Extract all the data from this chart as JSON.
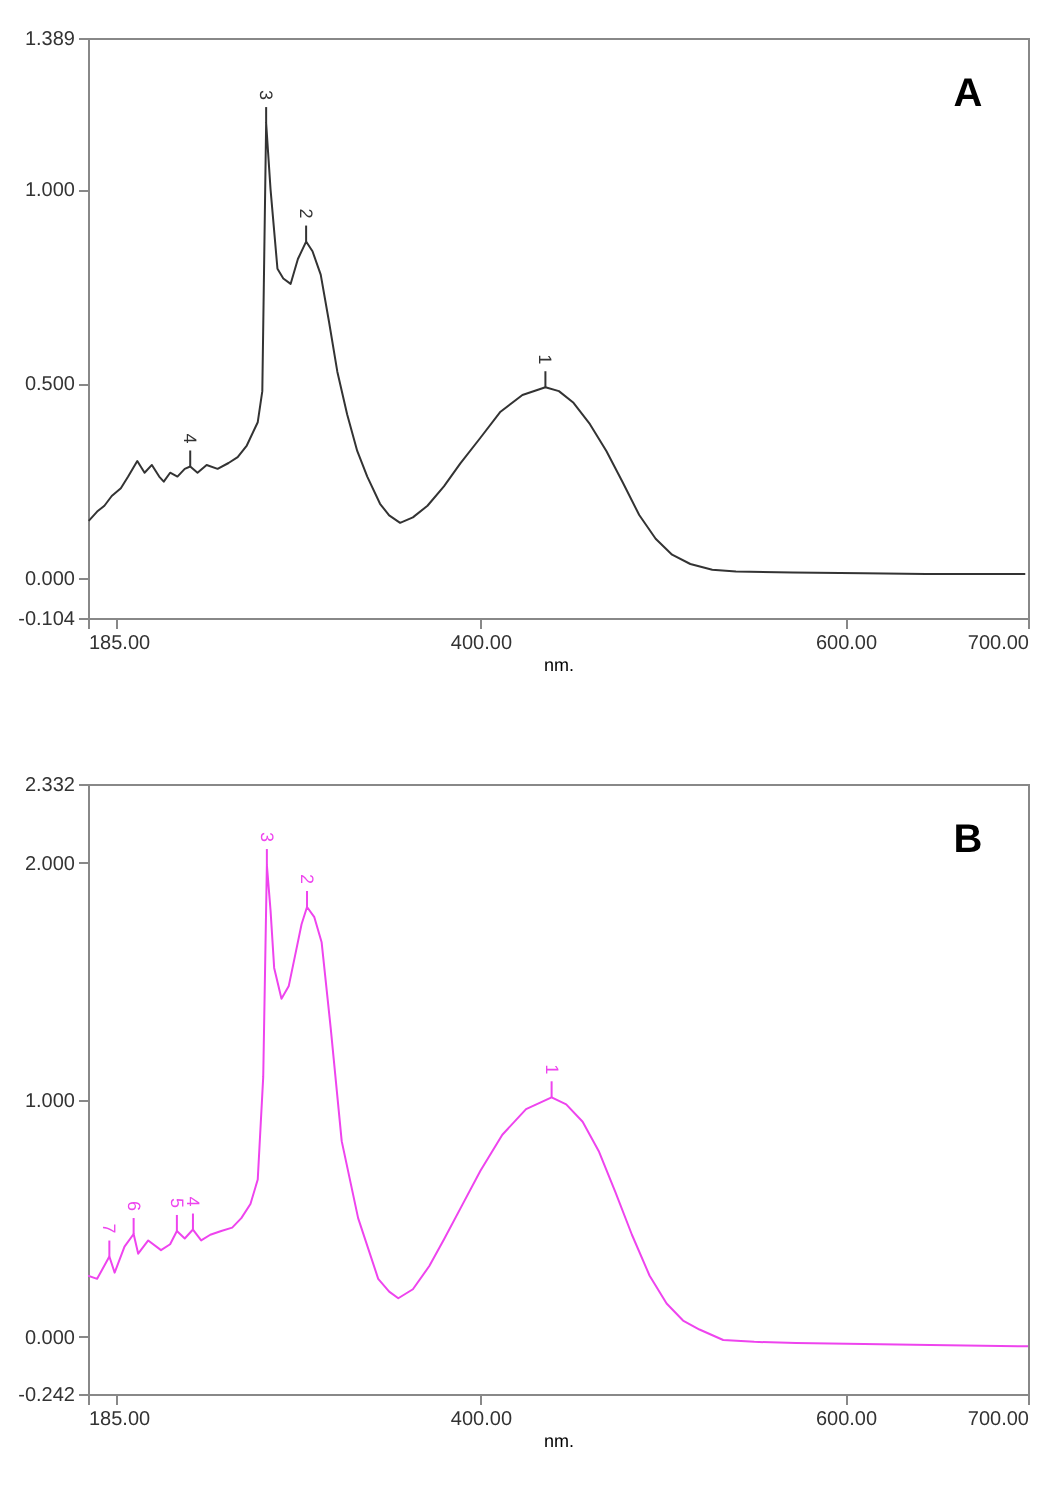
{
  "chart_data": [
    {
      "type": "line",
      "title": "A",
      "xlabel": "nm.",
      "xlim": [
        185,
        700
      ],
      "ylim": [
        -0.104,
        1.389
      ],
      "xticks": [
        {
          "value": 185,
          "label": "185.00"
        },
        {
          "value": 200,
          "label": null
        },
        {
          "value": 400,
          "label": "400.00"
        },
        {
          "value": 600,
          "label": "600.00"
        },
        {
          "value": 700,
          "label": "700.00"
        }
      ],
      "yticks": [
        {
          "value": -0.104,
          "label": "-0.104"
        },
        {
          "value": 0,
          "label": "0.000"
        },
        {
          "value": 0.5,
          "label": "0.500"
        },
        {
          "value": 1,
          "label": "1.000"
        },
        {
          "value": 1.389,
          "label": "1.389"
        }
      ],
      "grid": false,
      "series": [
        {
          "color": "#333333",
          "x": [
            185.4,
            190,
            194,
            198,
            203,
            207,
            212,
            216,
            220,
            224,
            226.5,
            230,
            234,
            238,
            241,
            245,
            250,
            256,
            262,
            267,
            272,
            278,
            280.5,
            282.6,
            285,
            288.8,
            292,
            296,
            300,
            304.5,
            308,
            312.5,
            317,
            321.6,
            327,
            332.5,
            338,
            345,
            350,
            356,
            363,
            371,
            380,
            389,
            400,
            411,
            423,
            435.6,
            443,
            451,
            460,
            469,
            478,
            487,
            496,
            505,
            515,
            527,
            540,
            571,
            610,
            644,
            680,
            698.5
          ],
          "values": [
            0.146,
            0.17,
            0.185,
            0.21,
            0.23,
            0.26,
            0.3,
            0.27,
            0.29,
            0.26,
            0.247,
            0.27,
            0.26,
            0.28,
            0.286,
            0.27,
            0.29,
            0.28,
            0.295,
            0.31,
            0.34,
            0.4,
            0.48,
            1.17,
            1.0,
            0.795,
            0.77,
            0.756,
            0.82,
            0.865,
            0.84,
            0.78,
            0.66,
            0.53,
            0.42,
            0.326,
            0.26,
            0.19,
            0.16,
            0.141,
            0.155,
            0.185,
            0.235,
            0.294,
            0.36,
            0.427,
            0.47,
            0.49,
            0.48,
            0.45,
            0.395,
            0.326,
            0.245,
            0.161,
            0.1,
            0.059,
            0.035,
            0.02,
            0.016,
            0.013,
            0.011,
            0.009,
            0.009,
            0.009
          ]
        }
      ],
      "annotations": [
        {
          "text": "1",
          "x": 435.6,
          "y": 0.49
        },
        {
          "text": "2",
          "x": 304.5,
          "y": 0.865
        },
        {
          "text": "3",
          "x": 282.6,
          "y": 1.17
        },
        {
          "text": "4",
          "x": 241,
          "y": 0.286
        }
      ]
    },
    {
      "type": "line",
      "title": "B",
      "xlabel": "nm.",
      "xlim": [
        185,
        700
      ],
      "ylim": [
        -0.242,
        2.332
      ],
      "xticks": [
        {
          "value": 185,
          "label": "185.00"
        },
        {
          "value": 200,
          "label": null
        },
        {
          "value": 400,
          "label": "400.00"
        },
        {
          "value": 600,
          "label": "600.00"
        },
        {
          "value": 700,
          "label": "700.00"
        }
      ],
      "yticks": [
        {
          "value": -0.242,
          "label": "-0.242"
        },
        {
          "value": 0,
          "label": "0.000"
        },
        {
          "value": 1,
          "label": "1.000"
        },
        {
          "value": 2,
          "label": "2.000"
        },
        {
          "value": 2.332,
          "label": "2.332"
        }
      ],
      "grid": false,
      "series": [
        {
          "color": "#ee44ee",
          "x": [
            185,
            190,
            196.7,
            199.6,
            205,
            210,
            212.5,
            218,
            225,
            230,
            233.7,
            238,
            242.5,
            247,
            252,
            258,
            264,
            269,
            274,
            278,
            281,
            283,
            285,
            287,
            291,
            295,
            298.5,
            302,
            305,
            309,
            313,
            318,
            324,
            333,
            344,
            350,
            355,
            363,
            372,
            380,
            390,
            400,
            412,
            425,
            439,
            447,
            456,
            465,
            474,
            483,
            492.7,
            502,
            511,
            520,
            533,
            550,
            573,
            610,
            646.5,
            700
          ],
          "values": [
            0.257,
            0.244,
            0.338,
            0.27,
            0.38,
            0.433,
            0.35,
            0.406,
            0.365,
            0.39,
            0.446,
            0.414,
            0.452,
            0.406,
            0.43,
            0.446,
            0.46,
            0.5,
            0.56,
            0.663,
            1.096,
            1.99,
            1.8,
            1.556,
            1.426,
            1.48,
            1.61,
            1.74,
            1.813,
            1.77,
            1.664,
            1.3,
            0.825,
            0.5,
            0.244,
            0.19,
            0.162,
            0.2,
            0.298,
            0.41,
            0.555,
            0.7,
            0.852,
            0.96,
            1.01,
            0.98,
            0.907,
            0.78,
            0.609,
            0.43,
            0.257,
            0.14,
            0.068,
            0.03,
            -0.014,
            -0.022,
            -0.027,
            -0.031,
            -0.035,
            -0.041
          ]
        }
      ],
      "annotations": [
        {
          "text": "1",
          "x": 439,
          "y": 1.01
        },
        {
          "text": "2",
          "x": 305,
          "y": 1.813
        },
        {
          "text": "3",
          "x": 283,
          "y": 1.99
        },
        {
          "text": "4",
          "x": 242.5,
          "y": 0.452
        },
        {
          "text": "5",
          "x": 233.7,
          "y": 0.446
        },
        {
          "text": "6",
          "x": 210,
          "y": 0.433
        },
        {
          "text": "7",
          "x": 196.7,
          "y": 0.338
        }
      ]
    }
  ]
}
